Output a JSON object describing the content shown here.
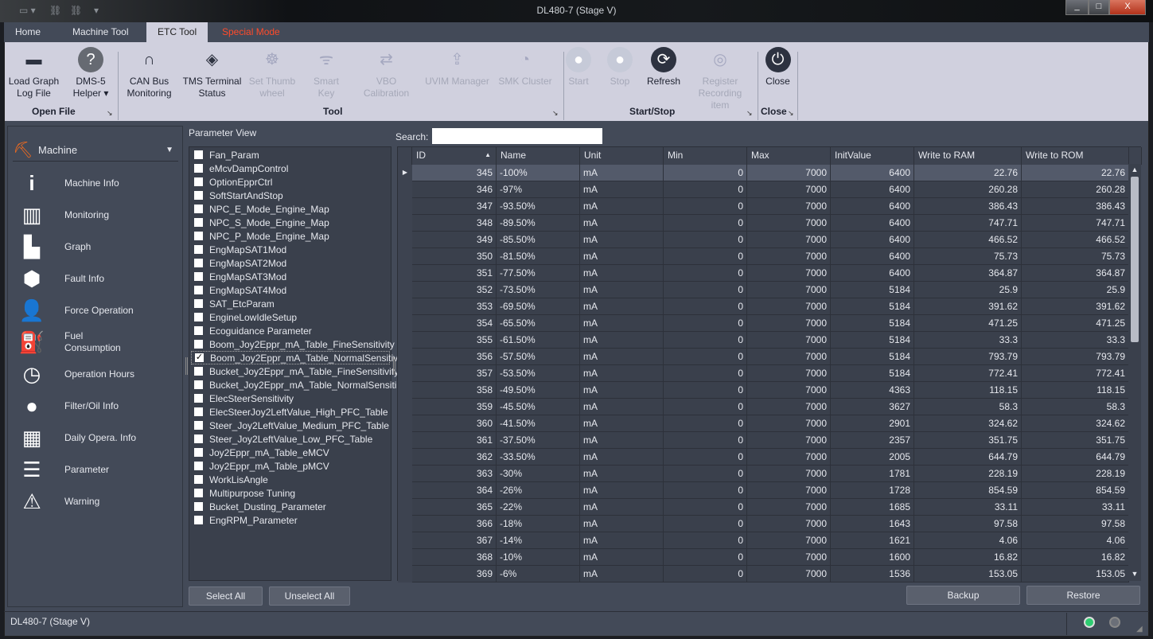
{
  "window": {
    "title": "DL480-7 (Stage V)",
    "minimize": "_",
    "maximize": "□",
    "close": "X"
  },
  "tabs": [
    {
      "label": "Home"
    },
    {
      "label": "Machine Tool"
    },
    {
      "label": "ETC Tool",
      "active": true
    },
    {
      "label": "Special Mode"
    }
  ],
  "ribbon": {
    "buttons": [
      {
        "label": "Load Graph\nLog File",
        "icon": "folder-icon",
        "enabled": true
      },
      {
        "label": "DMS-5\nHelper ▾",
        "icon": "help-icon",
        "enabled": true
      },
      {
        "label": "CAN Bus\nMonitoring",
        "icon": "tunnel-icon",
        "enabled": true
      },
      {
        "label": "TMS Terminal\nStatus",
        "icon": "chip-icon",
        "enabled": true
      },
      {
        "label": "Set Thumb\nwheel",
        "icon": "thumbwheel-icon",
        "enabled": false
      },
      {
        "label": "Smart\nKey",
        "icon": "smart-key-icon",
        "enabled": false
      },
      {
        "label": "VBO Calibration",
        "icon": "ab-swap-icon",
        "enabled": false
      },
      {
        "label": "UVIM Manager",
        "icon": "upload-window-icon",
        "enabled": false
      },
      {
        "label": "SMK Cluster",
        "icon": "gauge-icon",
        "enabled": false
      },
      {
        "label": "Start",
        "icon": "play-icon",
        "enabled": false
      },
      {
        "label": "Stop",
        "icon": "stop-icon",
        "enabled": false
      },
      {
        "label": "Refresh",
        "icon": "refresh-icon",
        "enabled": true
      },
      {
        "label": "Register\nRecording item",
        "icon": "record-icon",
        "enabled": false
      },
      {
        "label": "Close",
        "icon": "power-icon",
        "enabled": true
      }
    ],
    "groups": [
      "Open File",
      "Tool",
      "Start/Stop",
      "Close"
    ]
  },
  "sidebar": {
    "header": "Machine",
    "items": [
      {
        "label": "Machine Info",
        "icon": "info-icon"
      },
      {
        "label": "Monitoring",
        "icon": "monitor-icon"
      },
      {
        "label": "Graph",
        "icon": "bar-chart-icon"
      },
      {
        "label": "Fault Info",
        "icon": "fault-icon"
      },
      {
        "label": "Force Operation",
        "icon": "user-arrow-icon"
      },
      {
        "label": "Fuel\nConsumption",
        "icon": "fuel-pump-icon"
      },
      {
        "label": "Operation Hours",
        "icon": "clock-icon"
      },
      {
        "label": "Filter/Oil Info",
        "icon": "oil-drop-icon"
      },
      {
        "label": "Daily Opera. Info",
        "icon": "calendar-icon"
      },
      {
        "label": "Parameter",
        "icon": "clipboard-icon"
      },
      {
        "label": "Warning",
        "icon": "warning-icon"
      }
    ]
  },
  "parameter_view": {
    "title": "Parameter View",
    "items": [
      {
        "label": "Fan_Param",
        "checked": false
      },
      {
        "label": "eMcvDampControl",
        "checked": false
      },
      {
        "label": "OptionEpprCtrl",
        "checked": false
      },
      {
        "label": "SoftStartAndStop",
        "checked": false
      },
      {
        "label": "NPC_E_Mode_Engine_Map",
        "checked": false
      },
      {
        "label": "NPC_S_Mode_Engine_Map",
        "checked": false
      },
      {
        "label": "NPC_P_Mode_Engine_Map",
        "checked": false
      },
      {
        "label": "EngMapSAT1Mod",
        "checked": false
      },
      {
        "label": "EngMapSAT2Mod",
        "checked": false
      },
      {
        "label": "EngMapSAT3Mod",
        "checked": false
      },
      {
        "label": "EngMapSAT4Mod",
        "checked": false
      },
      {
        "label": "SAT_EtcParam",
        "checked": false
      },
      {
        "label": "EngineLowIdleSetup",
        "checked": false
      },
      {
        "label": "Ecoguidance Parameter",
        "checked": false
      },
      {
        "label": "Boom_Joy2Eppr_mA_Table_FineSensitivity",
        "checked": false
      },
      {
        "label": "Boom_Joy2Eppr_mA_Table_NormalSensitiv",
        "checked": true
      },
      {
        "label": "Bucket_Joy2Eppr_mA_Table_FineSensitivity",
        "checked": false
      },
      {
        "label": "Bucket_Joy2Eppr_mA_Table_NormalSensiti",
        "checked": false
      },
      {
        "label": "ElecSteerSensitivity",
        "checked": false
      },
      {
        "label": "ElecSteerJoy2LeftValue_High_PFC_Table",
        "checked": false
      },
      {
        "label": "Steer_Joy2LeftValue_Medium_PFC_Table",
        "checked": false
      },
      {
        "label": "Steer_Joy2LeftValue_Low_PFC_Table",
        "checked": false
      },
      {
        "label": "Joy2Eppr_mA_Table_eMCV",
        "checked": false
      },
      {
        "label": "Joy2Eppr_mA_Table_pMCV",
        "checked": false
      },
      {
        "label": "WorkLisAngle",
        "checked": false
      },
      {
        "label": "Multipurpose Tuning",
        "checked": false
      },
      {
        "label": "Bucket_Dusting_Parameter",
        "checked": false
      },
      {
        "label": "EngRPM_Parameter",
        "checked": false
      }
    ],
    "select_all": "Select All",
    "unselect_all": "Unselect All"
  },
  "search": {
    "label": "Search:",
    "value": ""
  },
  "table": {
    "columns": [
      "ID",
      "Name",
      "Unit",
      "Min",
      "Max",
      "InitValue",
      "Write to RAM",
      "Write to ROM"
    ],
    "sort": {
      "column": "ID",
      "direction": "ascending",
      "icon": "sort-up-icon"
    },
    "rows": [
      [
        "345",
        "-100%",
        "mA",
        "0",
        "7000",
        "6400",
        "22.76",
        "22.76"
      ],
      [
        "346",
        "-97%",
        "mA",
        "0",
        "7000",
        "6400",
        "260.28",
        "260.28"
      ],
      [
        "347",
        "-93.50%",
        "mA",
        "0",
        "7000",
        "6400",
        "386.43",
        "386.43"
      ],
      [
        "348",
        "-89.50%",
        "mA",
        "0",
        "7000",
        "6400",
        "747.71",
        "747.71"
      ],
      [
        "349",
        "-85.50%",
        "mA",
        "0",
        "7000",
        "6400",
        "466.52",
        "466.52"
      ],
      [
        "350",
        "-81.50%",
        "mA",
        "0",
        "7000",
        "6400",
        "75.73",
        "75.73"
      ],
      [
        "351",
        "-77.50%",
        "mA",
        "0",
        "7000",
        "6400",
        "364.87",
        "364.87"
      ],
      [
        "352",
        "-73.50%",
        "mA",
        "0",
        "7000",
        "5184",
        "25.9",
        "25.9"
      ],
      [
        "353",
        "-69.50%",
        "mA",
        "0",
        "7000",
        "5184",
        "391.62",
        "391.62"
      ],
      [
        "354",
        "-65.50%",
        "mA",
        "0",
        "7000",
        "5184",
        "471.25",
        "471.25"
      ],
      [
        "355",
        "-61.50%",
        "mA",
        "0",
        "7000",
        "5184",
        "33.3",
        "33.3"
      ],
      [
        "356",
        "-57.50%",
        "mA",
        "0",
        "7000",
        "5184",
        "793.79",
        "793.79"
      ],
      [
        "357",
        "-53.50%",
        "mA",
        "0",
        "7000",
        "5184",
        "772.41",
        "772.41"
      ],
      [
        "358",
        "-49.50%",
        "mA",
        "0",
        "7000",
        "4363",
        "118.15",
        "118.15"
      ],
      [
        "359",
        "-45.50%",
        "mA",
        "0",
        "7000",
        "3627",
        "58.3",
        "58.3"
      ],
      [
        "360",
        "-41.50%",
        "mA",
        "0",
        "7000",
        "2901",
        "324.62",
        "324.62"
      ],
      [
        "361",
        "-37.50%",
        "mA",
        "0",
        "7000",
        "2357",
        "351.75",
        "351.75"
      ],
      [
        "362",
        "-33.50%",
        "mA",
        "0",
        "7000",
        "2005",
        "644.79",
        "644.79"
      ],
      [
        "363",
        "-30%",
        "mA",
        "0",
        "7000",
        "1781",
        "228.19",
        "228.19"
      ],
      [
        "364",
        "-26%",
        "mA",
        "0",
        "7000",
        "1728",
        "854.59",
        "854.59"
      ],
      [
        "365",
        "-22%",
        "mA",
        "0",
        "7000",
        "1685",
        "33.11",
        "33.11"
      ],
      [
        "366",
        "-18%",
        "mA",
        "0",
        "7000",
        "1643",
        "97.58",
        "97.58"
      ],
      [
        "367",
        "-14%",
        "mA",
        "0",
        "7000",
        "1621",
        "4.06",
        "4.06"
      ],
      [
        "368",
        "-10%",
        "mA",
        "0",
        "7000",
        "1600",
        "16.82",
        "16.82"
      ],
      [
        "369",
        "-6%",
        "mA",
        "0",
        "7000",
        "1536",
        "153.05",
        "153.05"
      ]
    ],
    "selected_row": 0
  },
  "actions": {
    "backup": "Backup",
    "restore": "Restore"
  },
  "status": {
    "text": "DL480-7 (Stage V)",
    "indicators": [
      {
        "state": "on",
        "color": "#2ecc71"
      },
      {
        "state": "off",
        "color": "#6b6f78"
      }
    ]
  }
}
